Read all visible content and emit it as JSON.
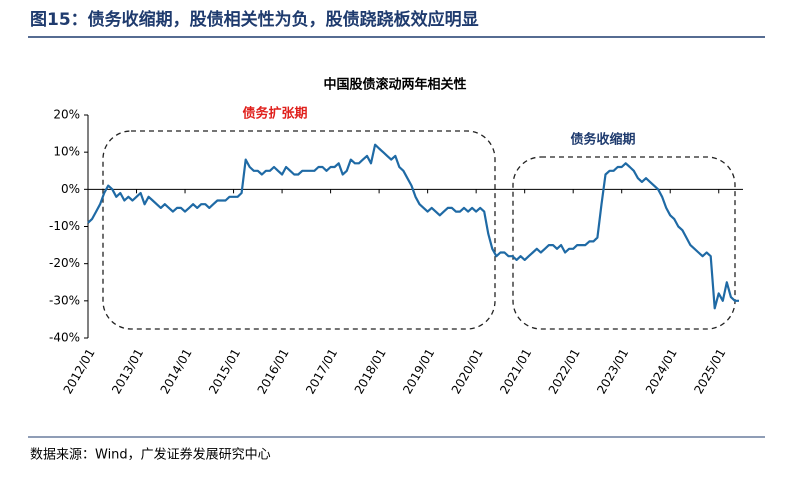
{
  "header": {
    "title": "图15：债务收缩期，股债相关性为负，股债跷跷板效应明显"
  },
  "chart_data": {
    "type": "line",
    "title": "中国股债滚动两年相关性",
    "annotations": [
      {
        "text": "债务扩张期",
        "color": "#e0201c"
      },
      {
        "text": "债务收缩期",
        "color": "#1f3b6e"
      }
    ],
    "x": [
      "2012/01",
      "2012/02",
      "2012/03",
      "2012/04",
      "2012/05",
      "2012/06",
      "2012/07",
      "2012/08",
      "2012/09",
      "2012/10",
      "2012/11",
      "2012/12",
      "2013/01",
      "2013/02",
      "2013/03",
      "2013/04",
      "2013/05",
      "2013/06",
      "2013/07",
      "2013/08",
      "2013/09",
      "2013/10",
      "2013/11",
      "2013/12",
      "2014/01",
      "2014/02",
      "2014/03",
      "2014/04",
      "2014/05",
      "2014/06",
      "2014/07",
      "2014/08",
      "2014/09",
      "2014/10",
      "2014/11",
      "2014/12",
      "2015/01",
      "2015/02",
      "2015/03",
      "2015/04",
      "2015/05",
      "2015/06",
      "2015/07",
      "2015/08",
      "2015/09",
      "2015/10",
      "2015/11",
      "2015/12",
      "2016/01",
      "2016/02",
      "2016/03",
      "2016/04",
      "2016/05",
      "2016/06",
      "2016/07",
      "2016/08",
      "2016/09",
      "2016/10",
      "2016/11",
      "2016/12",
      "2017/01",
      "2017/02",
      "2017/03",
      "2017/04",
      "2017/05",
      "2017/06",
      "2017/07",
      "2017/08",
      "2017/09",
      "2017/10",
      "2017/11",
      "2017/12",
      "2018/01",
      "2018/02",
      "2018/03",
      "2018/04",
      "2018/05",
      "2018/06",
      "2018/07",
      "2018/08",
      "2018/09",
      "2018/10",
      "2018/11",
      "2018/12",
      "2019/01",
      "2019/02",
      "2019/03",
      "2019/04",
      "2019/05",
      "2019/06",
      "2019/07",
      "2019/08",
      "2019/09",
      "2019/10",
      "2019/11",
      "2019/12",
      "2020/01",
      "2020/02",
      "2020/03",
      "2020/04",
      "2020/05",
      "2020/06",
      "2020/07",
      "2020/08",
      "2020/09",
      "2020/10",
      "2020/11",
      "2020/12",
      "2021/01",
      "2021/02",
      "2021/03",
      "2021/04",
      "2021/05",
      "2021/06",
      "2021/07",
      "2021/08",
      "2021/09",
      "2021/10",
      "2021/11",
      "2021/12",
      "2022/01",
      "2022/02",
      "2022/03",
      "2022/04",
      "2022/05",
      "2022/06",
      "2022/07",
      "2022/08",
      "2022/09",
      "2022/10",
      "2022/11",
      "2022/12",
      "2023/01",
      "2023/02",
      "2023/03",
      "2023/04",
      "2023/05",
      "2023/06",
      "2023/07",
      "2023/08",
      "2023/09",
      "2023/10",
      "2023/11",
      "2023/12",
      "2024/01",
      "2024/02",
      "2024/03",
      "2024/04",
      "2024/05",
      "2024/06",
      "2024/07",
      "2024/08",
      "2024/09",
      "2024/10",
      "2024/11",
      "2024/12",
      "2025/01",
      "2025/02",
      "2025/03",
      "2025/04",
      "2025/05",
      "2025/06"
    ],
    "series": [
      {
        "name": "中国股债滚动两年相关性",
        "color": "#1f6aa5",
        "values": [
          -9,
          -8,
          -6,
          -4,
          -1,
          1,
          0,
          -2,
          -1,
          -3,
          -2,
          -3,
          -2,
          -1,
          -4,
          -2,
          -3,
          -4,
          -5,
          -4,
          -5,
          -6,
          -5,
          -5,
          -6,
          -5,
          -4,
          -5,
          -4,
          -4,
          -5,
          -4,
          -3,
          -3,
          -3,
          -2,
          -2,
          -2,
          -1,
          8,
          6,
          5,
          5,
          4,
          5,
          5,
          6,
          5,
          4,
          6,
          5,
          4,
          4,
          5,
          5,
          5,
          5,
          6,
          6,
          5,
          6,
          6,
          7,
          4,
          5,
          8,
          7,
          7,
          8,
          9,
          7,
          12,
          11,
          10,
          9,
          8,
          9,
          6,
          5,
          3,
          1,
          -2,
          -4,
          -5,
          -6,
          -5,
          -6,
          -7,
          -6,
          -5,
          -5,
          -6,
          -6,
          -5,
          -6,
          -5,
          -6,
          -5,
          -6,
          -12,
          -16,
          -18,
          -17,
          -17,
          -18,
          -18,
          -19,
          -18,
          -19,
          -18,
          -17,
          -16,
          -17,
          -16,
          -15,
          -15,
          -16,
          -15,
          -17,
          -16,
          -16,
          -15,
          -15,
          -15,
          -14,
          -14,
          -13,
          -4,
          4,
          5,
          5,
          6,
          6,
          7,
          6,
          5,
          3,
          2,
          3,
          2,
          1,
          0,
          -2,
          -5,
          -7,
          -8,
          -10,
          -11,
          -13,
          -15,
          -16,
          -17,
          -18,
          -17,
          -18,
          -32,
          -28,
          -30,
          -25,
          -29,
          -30,
          -30
        ]
      }
    ],
    "xlim": [
      "2012/01",
      "2025/07"
    ],
    "xticks": [
      "2012/01",
      "2013/01",
      "2014/01",
      "2015/01",
      "2016/01",
      "2017/01",
      "2018/01",
      "2019/01",
      "2020/01",
      "2021/01",
      "2022/01",
      "2023/01",
      "2024/01",
      "2025/01"
    ],
    "ylim": [
      -40,
      20
    ],
    "yticks": [
      {
        "value": 20,
        "label": "20%"
      },
      {
        "value": 10,
        "label": "10%"
      },
      {
        "value": 0,
        "label": "0%"
      },
      {
        "value": -10,
        "label": "-10%"
      },
      {
        "value": -20,
        "label": "-20%"
      },
      {
        "value": -30,
        "label": "-30%"
      },
      {
        "value": -40,
        "label": "-40%"
      }
    ]
  },
  "footer": {
    "source": "数据来源：Wind，广发证券发展研究中心"
  }
}
